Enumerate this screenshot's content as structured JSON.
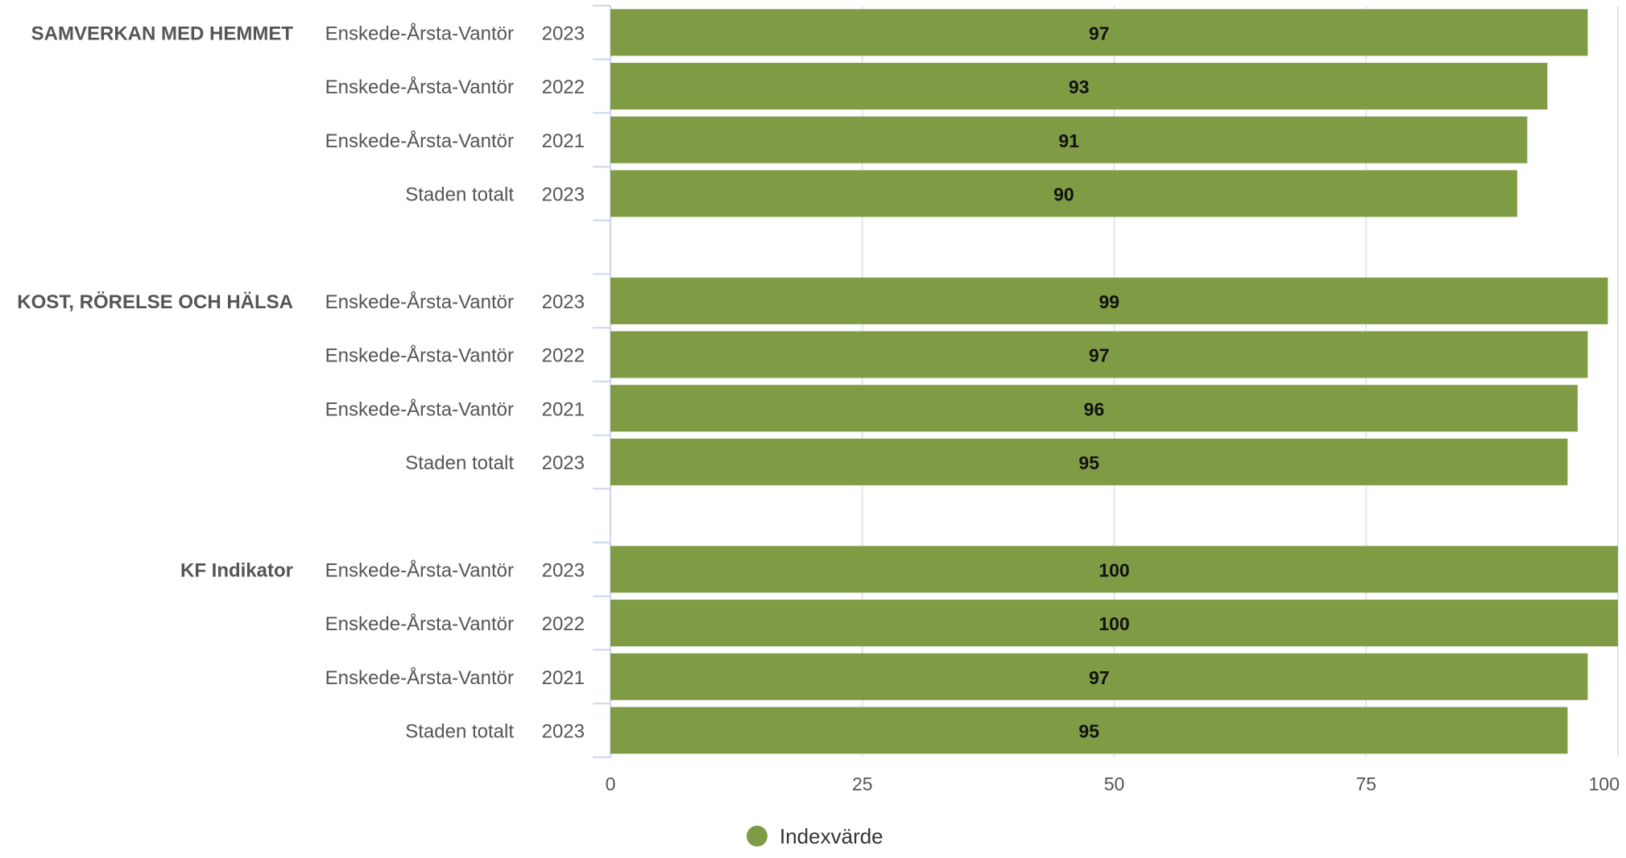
{
  "chart_data": {
    "type": "bar",
    "orientation": "horizontal",
    "groups": [
      {
        "label": "SAMVERKAN MED HEMMET",
        "rows": [
          {
            "name": "Enskede-Årsta-Vantör",
            "year": "2023",
            "value": 97,
            "value_label": "97"
          },
          {
            "name": "Enskede-Årsta-Vantör",
            "year": "2022",
            "value": 93,
            "value_label": "93"
          },
          {
            "name": "Enskede-Årsta-Vantör",
            "year": "2021",
            "value": 91,
            "value_label": "91"
          },
          {
            "name": "Staden totalt",
            "year": "2023",
            "value": 90,
            "value_label": "90"
          }
        ]
      },
      {
        "label": "KOST, RÖRELSE OCH HÄLSA",
        "rows": [
          {
            "name": "Enskede-Årsta-Vantör",
            "year": "2023",
            "value": 99,
            "value_label": "99"
          },
          {
            "name": "Enskede-Årsta-Vantör",
            "year": "2022",
            "value": 97,
            "value_label": "97"
          },
          {
            "name": "Enskede-Årsta-Vantör",
            "year": "2021",
            "value": 96,
            "value_label": "96"
          },
          {
            "name": "Staden totalt",
            "year": "2023",
            "value": 95,
            "value_label": "95"
          }
        ]
      },
      {
        "label": "KF Indikator",
        "rows": [
          {
            "name": "Enskede-Årsta-Vantör",
            "year": "2023",
            "value": 100,
            "value_label": "100"
          },
          {
            "name": "Enskede-Årsta-Vantör",
            "year": "2022",
            "value": 100,
            "value_label": "100"
          },
          {
            "name": "Enskede-Årsta-Vantör",
            "year": "2021",
            "value": 97,
            "value_label": "97"
          },
          {
            "name": "Staden totalt",
            "year": "2023",
            "value": 95,
            "value_label": "95"
          }
        ]
      }
    ],
    "xlim": [
      0,
      100
    ],
    "xticks": [
      0,
      25,
      50,
      75,
      100
    ],
    "xtick_labels": [
      "0",
      "25",
      "50",
      "75",
      "100"
    ],
    "grid": true,
    "legend": {
      "position": "bottom-center",
      "entries": [
        {
          "label": "Indexvärde",
          "color": "#7f9c45"
        }
      ]
    },
    "colors": {
      "bar": "#7f9c45",
      "grid": "#e2e6ec",
      "axis": "#ccd6eb"
    }
  }
}
